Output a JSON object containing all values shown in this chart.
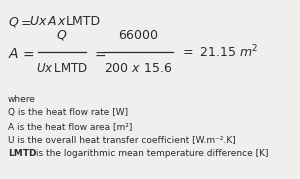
{
  "bg_color": "#efefed",
  "text_color": "#2b2b2b",
  "where_label": "where",
  "def1": "Q is the heat flow rate [W]",
  "def2": "A is the heat flow area [m²]",
  "def3": "U is the overall heat transfer coefficient [W.m⁻².K]",
  "def4": "LMTD is the logarithmic mean temperature difference [K]"
}
